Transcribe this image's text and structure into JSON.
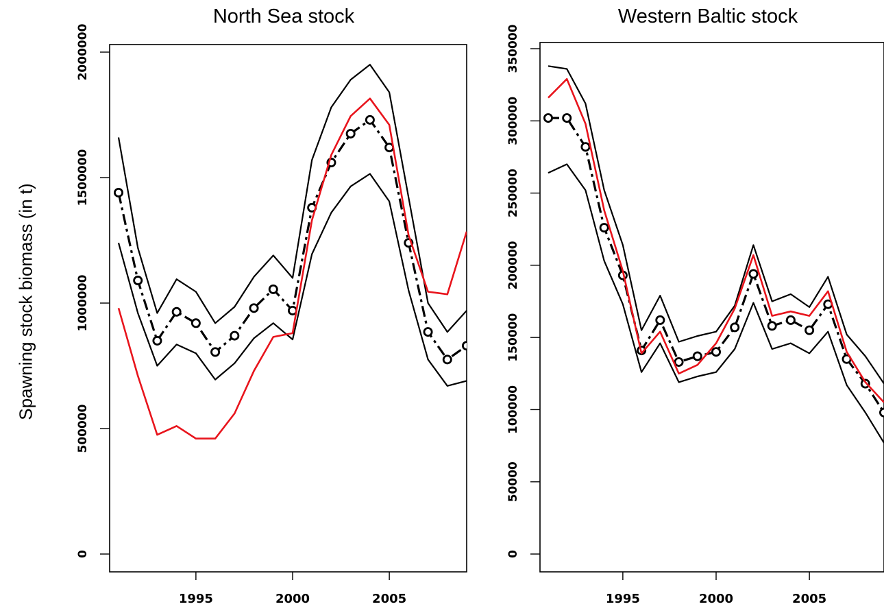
{
  "figure": {
    "ylabel": "Spawning stock biomass (in t)"
  },
  "chart_data": [
    {
      "type": "line",
      "title": "North Sea stock",
      "ylabel": "Spawning stock biomass (in t)",
      "xlim": [
        1991,
        2009
      ],
      "ylim": [
        0,
        2000000
      ],
      "xticks": [
        1995,
        2000,
        2005
      ],
      "yticks": [
        0,
        500000,
        1000000,
        1500000,
        2000000
      ],
      "x": [
        1991,
        1992,
        1993,
        1994,
        1995,
        1996,
        1997,
        1998,
        1999,
        2000,
        2001,
        2002,
        2003,
        2004,
        2005,
        2006,
        2007,
        2008,
        2009
      ],
      "series": [
        {
          "role": "estimate",
          "color": "#000000",
          "style": "dash-dot-circles",
          "values": [
            1440000,
            1090000,
            850000,
            965000,
            920000,
            805000,
            870000,
            980000,
            1055000,
            970000,
            1380000,
            1560000,
            1675000,
            1730000,
            1620000,
            1240000,
            885000,
            775000,
            830000
          ]
        },
        {
          "role": "upper-bound",
          "color": "#000000",
          "style": "solid",
          "values": [
            1660000,
            1220000,
            960000,
            1095000,
            1045000,
            920000,
            985000,
            1105000,
            1190000,
            1100000,
            1570000,
            1780000,
            1890000,
            1950000,
            1840000,
            1420000,
            1000000,
            885000,
            970000
          ]
        },
        {
          "role": "lower-bound",
          "color": "#000000",
          "style": "solid",
          "values": [
            1240000,
            960000,
            750000,
            835000,
            800000,
            695000,
            760000,
            860000,
            920000,
            855000,
            1195000,
            1360000,
            1465000,
            1515000,
            1405000,
            1050000,
            775000,
            670000,
            690000
          ]
        },
        {
          "role": "comparison",
          "color": "#e8141c",
          "style": "solid",
          "values": [
            980000,
            710000,
            475000,
            510000,
            460000,
            460000,
            560000,
            730000,
            865000,
            880000,
            1330000,
            1590000,
            1745000,
            1815000,
            1710000,
            1270000,
            1045000,
            1035000,
            1285000
          ]
        }
      ]
    },
    {
      "type": "line",
      "title": "Western Baltic stock",
      "xlim": [
        1991,
        2009
      ],
      "ylim": [
        0,
        350000
      ],
      "xticks": [
        1995,
        2000,
        2005
      ],
      "yticks": [
        0,
        50000,
        100000,
        150000,
        200000,
        250000,
        300000,
        350000
      ],
      "x": [
        1991,
        1992,
        1993,
        1994,
        1995,
        1996,
        1997,
        1998,
        1999,
        2000,
        2001,
        2002,
        2003,
        2004,
        2005,
        2006,
        2007,
        2008,
        2009
      ],
      "series": [
        {
          "role": "estimate",
          "color": "#000000",
          "style": "dash-dot-circles",
          "values": [
            302000,
            302000,
            282000,
            226000,
            193000,
            141000,
            162000,
            133000,
            137000,
            140000,
            157000,
            194000,
            158000,
            162000,
            155000,
            173000,
            135000,
            118000,
            98000
          ]
        },
        {
          "role": "upper-bound",
          "color": "#000000",
          "style": "solid",
          "values": [
            338000,
            336000,
            312000,
            252000,
            214000,
            155000,
            179000,
            147000,
            151000,
            154000,
            172000,
            214000,
            175000,
            180000,
            171000,
            192000,
            152000,
            137000,
            118000
          ]
        },
        {
          "role": "lower-bound",
          "color": "#000000",
          "style": "solid",
          "values": [
            264000,
            270000,
            252000,
            203000,
            173000,
            126000,
            146000,
            119000,
            123000,
            126000,
            142000,
            174000,
            142000,
            146000,
            139000,
            154000,
            117000,
            98000,
            77000
          ]
        },
        {
          "role": "comparison",
          "color": "#e8141c",
          "style": "solid",
          "values": [
            316000,
            329000,
            298000,
            238000,
            196000,
            139000,
            154000,
            125000,
            131000,
            146000,
            170000,
            207000,
            165000,
            168000,
            165000,
            182000,
            140000,
            119000,
            105000
          ]
        }
      ]
    }
  ]
}
